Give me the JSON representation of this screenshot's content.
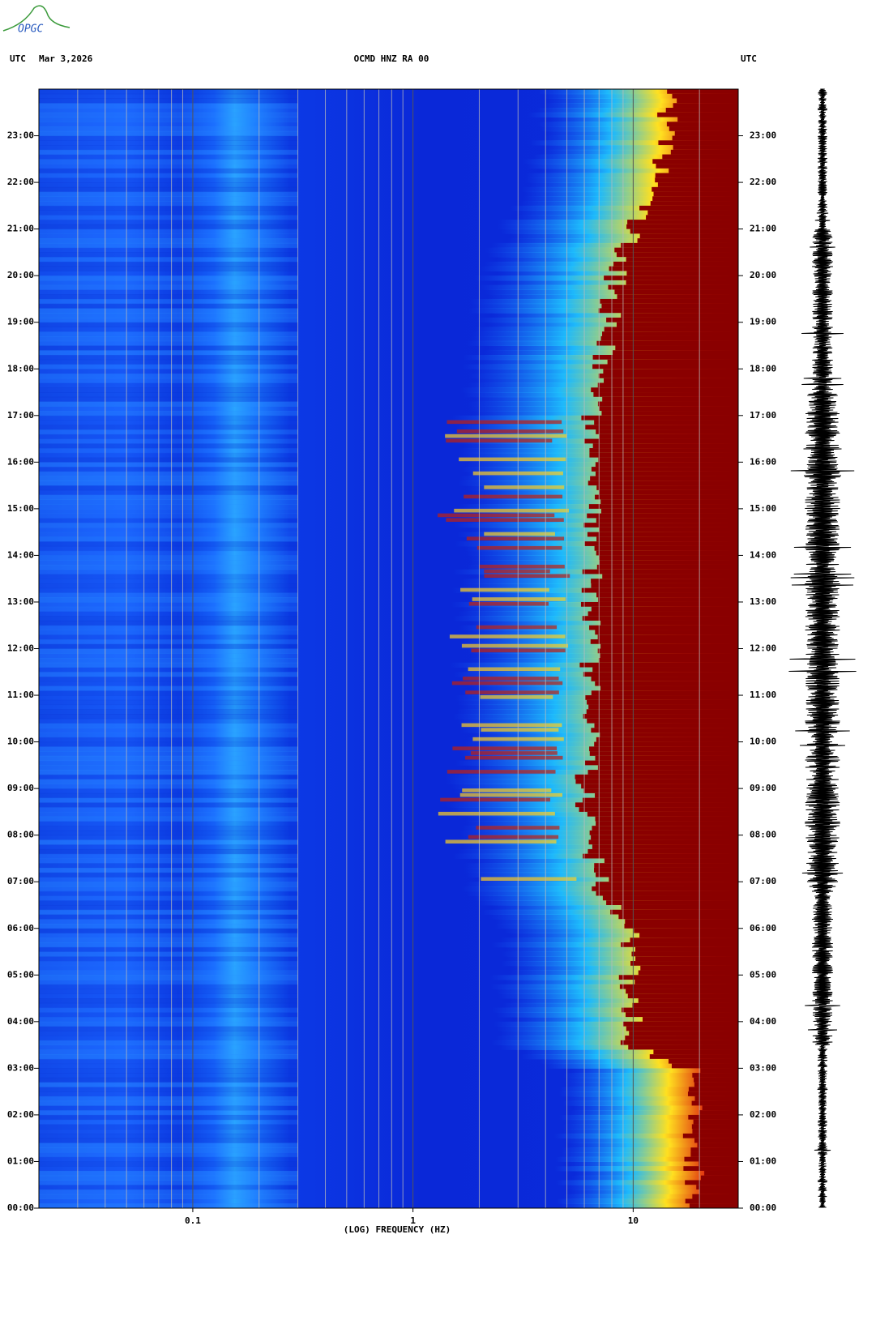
{
  "logo": "OPGC",
  "chart_data": {
    "type": "spectrogram",
    "timezone_left": "UTC",
    "date_label": "Mar 3,2026",
    "title": "OCMD HNZ RA 00",
    "timezone_right": "UTC",
    "xlabel": "(LOG) FREQUENCY (HZ)",
    "xscale": "log",
    "xlim": [
      0.02,
      30
    ],
    "xticks": [
      0.1,
      1,
      10
    ],
    "xgrid_minor": [
      0.03,
      0.04,
      0.05,
      0.06,
      0.07,
      0.08,
      0.09,
      0.2,
      0.3,
      0.4,
      0.5,
      0.6,
      0.7,
      0.8,
      0.9,
      2,
      3,
      4,
      5,
      6,
      7,
      8,
      9,
      20
    ],
    "ylim": [
      0,
      24
    ],
    "yticks": [
      {
        "value": 0,
        "label": "00:00"
      },
      {
        "value": 1,
        "label": "01:00"
      },
      {
        "value": 2,
        "label": "02:00"
      },
      {
        "value": 3,
        "label": "03:00"
      },
      {
        "value": 4,
        "label": "04:00"
      },
      {
        "value": 5,
        "label": "05:00"
      },
      {
        "value": 6,
        "label": "06:00"
      },
      {
        "value": 7,
        "label": "07:00"
      },
      {
        "value": 8,
        "label": "08:00"
      },
      {
        "value": 9,
        "label": "09:00"
      },
      {
        "value": 10,
        "label": "10:00"
      },
      {
        "value": 11,
        "label": "11:00"
      },
      {
        "value": 12,
        "label": "12:00"
      },
      {
        "value": 13,
        "label": "13:00"
      },
      {
        "value": 14,
        "label": "14:00"
      },
      {
        "value": 15,
        "label": "15:00"
      },
      {
        "value": 16,
        "label": "16:00"
      },
      {
        "value": 17,
        "label": "17:00"
      },
      {
        "value": 18,
        "label": "18:00"
      },
      {
        "value": 19,
        "label": "19:00"
      },
      {
        "value": 20,
        "label": "20:00"
      },
      {
        "value": 21,
        "label": "21:00"
      },
      {
        "value": 22,
        "label": "22:00"
      },
      {
        "value": 23,
        "label": "23:00"
      }
    ]
  }
}
